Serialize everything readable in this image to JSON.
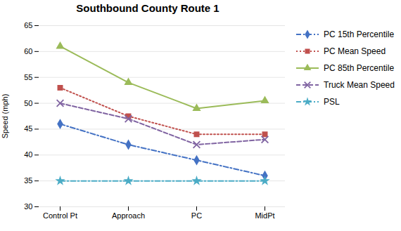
{
  "chart_data": {
    "type": "line",
    "title": "Southbound County Route 1",
    "ylabel": "Speed (mph)",
    "categories": [
      "Control Pt",
      "Approach",
      "PC",
      "MidPt"
    ],
    "series": [
      {
        "name": "PC 15th Percentile",
        "color": "#4472C4",
        "values": [
          46,
          42,
          39,
          36
        ],
        "marker": "diamond",
        "line_style": "dashdot"
      },
      {
        "name": "PC Mean Speed",
        "color": "#C0504D",
        "values": [
          53,
          47.5,
          44,
          44
        ],
        "marker": "square",
        "line_style": "dotted"
      },
      {
        "name": "PC 85th Percentile",
        "color": "#9BBB59",
        "values": [
          61,
          54,
          49,
          50.5
        ],
        "marker": "triangle",
        "line_style": "solid"
      },
      {
        "name": "Truck Mean Speed",
        "color": "#8064A2",
        "values": [
          50,
          47,
          42,
          43
        ],
        "marker": "times",
        "line_style": "dashed"
      },
      {
        "name": "PSL",
        "color": "#4BACC6",
        "values": [
          35,
          35,
          35,
          35
        ],
        "marker": "star",
        "line_style": "dashdot"
      }
    ],
    "ylim": [
      30,
      65
    ],
    "yticks": [
      30,
      35,
      40,
      45,
      50,
      55,
      60,
      65
    ],
    "grid": true,
    "legend": "right"
  }
}
